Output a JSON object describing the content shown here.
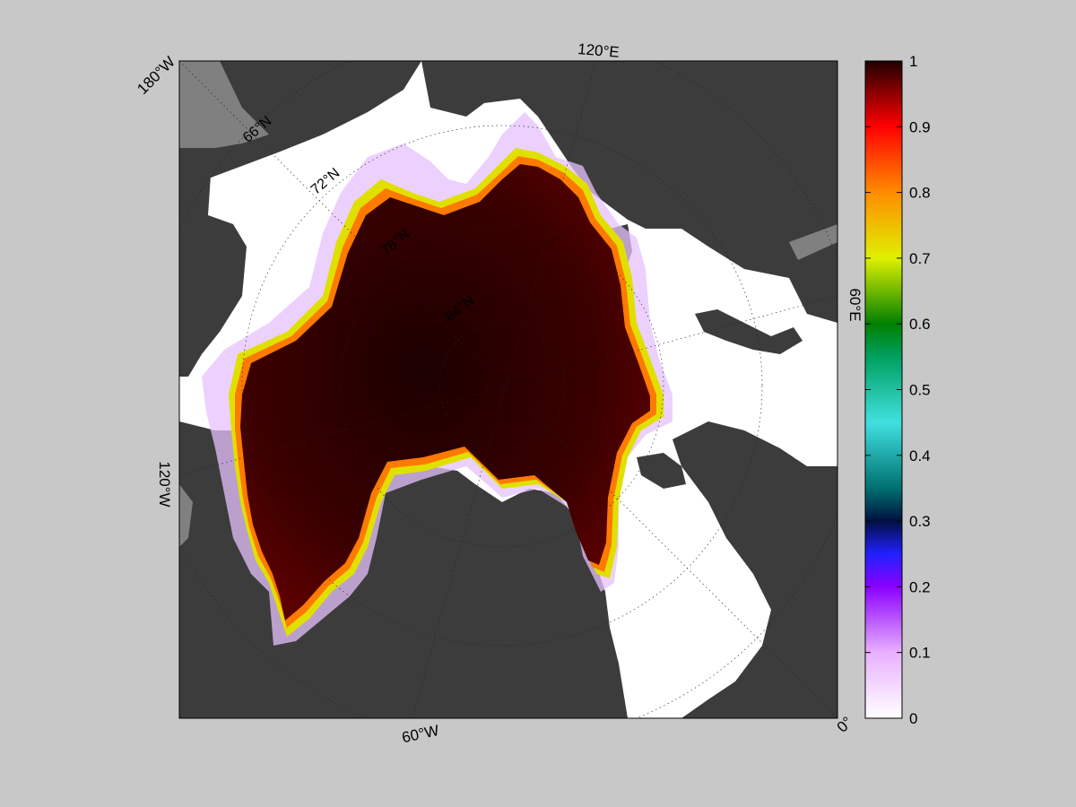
{
  "map": {
    "projection": "north-polar-stereographic",
    "data_variable_description": "sea ice concentration (fraction 0–1)",
    "longitude_labels": [
      {
        "id": "lon-180w",
        "text": "180°W"
      },
      {
        "id": "lon-120e",
        "text": "120°E"
      },
      {
        "id": "lon-60e",
        "text": "60°E"
      },
      {
        "id": "lon-0",
        "text": "0°"
      },
      {
        "id": "lon-60w",
        "text": "60°W"
      },
      {
        "id": "lon-120w",
        "text": "120°W"
      }
    ],
    "latitude_labels": [
      {
        "id": "lat-66",
        "text": "66°N"
      },
      {
        "id": "lat-72",
        "text": "72°N"
      },
      {
        "id": "lat-78",
        "text": "78°N"
      },
      {
        "id": "lat-84",
        "text": "84°N"
      }
    ],
    "colors": {
      "figure_background": "#c8c8c8",
      "plot_background": "#ffffff",
      "land": "#3c3c3c",
      "land_masked": "#808080",
      "pack_ice": "#3a0000"
    }
  },
  "colorbar": {
    "min": 0,
    "max": 1,
    "tick_labels": [
      "0",
      "0.1",
      "0.2",
      "0.3",
      "0.4",
      "0.5",
      "0.6",
      "0.7",
      "0.8",
      "0.9",
      "1"
    ],
    "colormap_stops": [
      {
        "v": 0.0,
        "c": "#ffffff"
      },
      {
        "v": 0.1,
        "c": "#e8b0ff"
      },
      {
        "v": 0.2,
        "c": "#8a00ff"
      },
      {
        "v": 0.25,
        "c": "#2020ff"
      },
      {
        "v": 0.3,
        "c": "#001040"
      },
      {
        "v": 0.35,
        "c": "#007070"
      },
      {
        "v": 0.45,
        "c": "#40e0e0"
      },
      {
        "v": 0.55,
        "c": "#00a060"
      },
      {
        "v": 0.6,
        "c": "#008000"
      },
      {
        "v": 0.7,
        "c": "#e0f000"
      },
      {
        "v": 0.8,
        "c": "#ff8c00"
      },
      {
        "v": 0.9,
        "c": "#ff0000"
      },
      {
        "v": 1.0,
        "c": "#200000"
      }
    ]
  }
}
